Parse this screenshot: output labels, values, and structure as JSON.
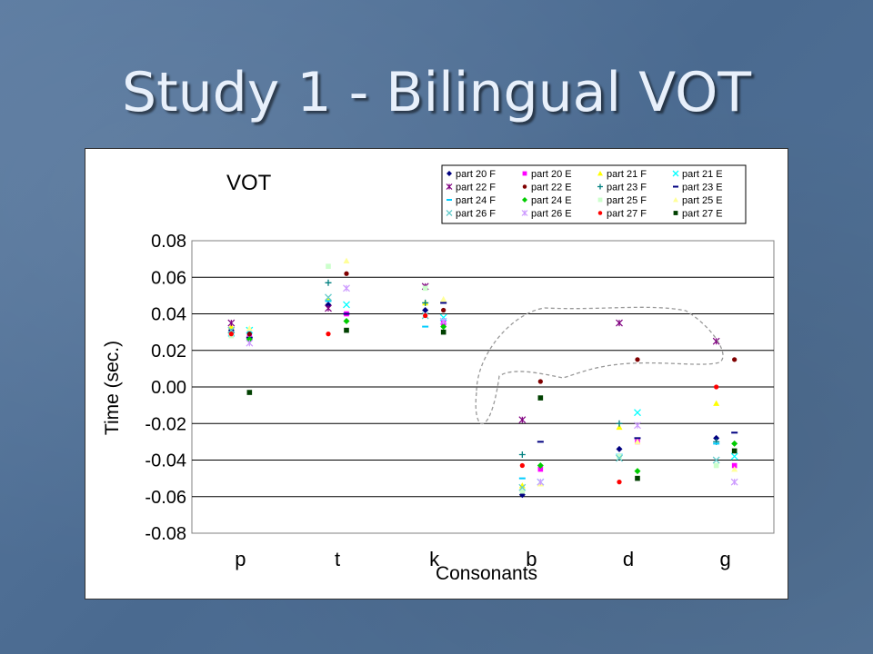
{
  "slide": {
    "title": "Study 1 - Bilingual VOT"
  },
  "chart_data": {
    "type": "scatter",
    "title": "VOT",
    "xlabel": "Consonants",
    "ylabel": "Time (sec.)",
    "categories": [
      "p",
      "t",
      "k",
      "b",
      "d",
      "g"
    ],
    "ylim": [
      -0.08,
      0.08
    ],
    "yticks": [
      "0.08",
      "0.06",
      "0.04",
      "0.02",
      "0.00",
      "-0.02",
      "-0.04",
      "-0.06",
      "-0.08"
    ],
    "grid": true,
    "legend_position": "top-right",
    "series": [
      {
        "name": "part 20 F",
        "color": "#000080",
        "marker": "diamond",
        "values": [
          0.031,
          0.045,
          0.042,
          -0.059,
          -0.034,
          -0.028
        ]
      },
      {
        "name": "part 20 E",
        "color": "#ff00ff",
        "marker": "square",
        "values": [
          0.029,
          0.04,
          0.035,
          -0.045,
          -0.03,
          -0.043
        ]
      },
      {
        "name": "part 21 F",
        "color": "#ffff00",
        "marker": "triangle",
        "values": [
          0.033,
          0.048,
          0.046,
          -0.054,
          -0.022,
          -0.009
        ]
      },
      {
        "name": "part 21 E",
        "color": "#00ffff",
        "marker": "x",
        "values": [
          0.031,
          0.045,
          0.038,
          -0.052,
          -0.014,
          -0.038
        ]
      },
      {
        "name": "part 22 F",
        "color": "#800080",
        "marker": "star",
        "values": [
          0.035,
          0.043,
          0.055,
          -0.018,
          0.035,
          0.025
        ]
      },
      {
        "name": "part 22 E",
        "color": "#800000",
        "marker": "circle",
        "values": [
          0.029,
          0.062,
          0.042,
          0.003,
          0.015,
          0.015
        ]
      },
      {
        "name": "part 23 F",
        "color": "#008080",
        "marker": "plus",
        "values": [
          0.03,
          0.057,
          0.046,
          -0.037,
          -0.02,
          -0.03
        ]
      },
      {
        "name": "part 23 E",
        "color": "#000080",
        "marker": "dash",
        "values": [
          0.027,
          0.04,
          0.046,
          -0.03,
          -0.028,
          -0.025
        ]
      },
      {
        "name": "part 24 F",
        "color": "#00ccff",
        "marker": "dash",
        "values": [
          0.028,
          0.047,
          0.033,
          -0.05,
          -0.037,
          -0.031
        ]
      },
      {
        "name": "part 24 E",
        "color": "#00cc00",
        "marker": "diamond",
        "values": [
          0.026,
          0.036,
          0.033,
          -0.043,
          -0.046,
          -0.031
        ]
      },
      {
        "name": "part 25 F",
        "color": "#ccffcc",
        "marker": "square",
        "values": [
          0.028,
          0.066,
          0.054,
          -0.057,
          -0.038,
          -0.043
        ]
      },
      {
        "name": "part 25 E",
        "color": "#ffff99",
        "marker": "triangle",
        "values": [
          0.032,
          0.069,
          0.048,
          -0.053,
          -0.03,
          -0.045
        ]
      },
      {
        "name": "part 26 F",
        "color": "#66cccc",
        "marker": "x",
        "values": [
          0.031,
          0.049,
          0.039,
          -0.055,
          -0.039,
          -0.04
        ]
      },
      {
        "name": "part 26 E",
        "color": "#cc99ff",
        "marker": "star",
        "values": [
          0.024,
          0.054,
          0.036,
          -0.052,
          -0.021,
          -0.052
        ]
      },
      {
        "name": "part 27 F",
        "color": "#ff0000",
        "marker": "circle",
        "values": [
          0.029,
          0.029,
          0.039,
          -0.043,
          -0.052,
          0.0
        ]
      },
      {
        "name": "part 27 E",
        "color": "#004000",
        "marker": "square",
        "values": [
          -0.003,
          0.031,
          0.03,
          -0.006,
          -0.05,
          -0.035
        ]
      }
    ]
  }
}
